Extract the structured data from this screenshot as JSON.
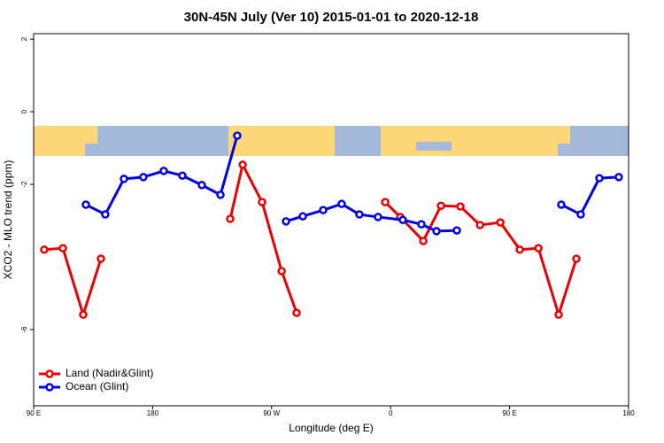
{
  "chart_data": {
    "type": "line",
    "title": "30N-45N July (Ver 10)   2015-01-01 to 2020-12-18",
    "x_label": "Longitude (deg E)",
    "y_label": "XCO2 - MLO trend (ppm)",
    "xlim": [
      90,
      540
    ],
    "xticks": [
      {
        "value": 90,
        "label": "90 E"
      },
      {
        "value": 180,
        "label": "180"
      },
      {
        "value": 270,
        "label": "90 W"
      },
      {
        "value": 360,
        "label": "0"
      },
      {
        "value": 450,
        "label": "90 E"
      },
      {
        "value": 540,
        "label": "180"
      }
    ],
    "ylim": [
      -8.1,
      2.15
    ],
    "yticks": [
      -6,
      -2,
      0,
      2
    ],
    "legend": "bottom-left",
    "series": [
      {
        "name": "Land (Nadir&Glint)",
        "color": "#ee0000",
        "x": [
          98.0,
          112.1,
          127.5,
          140.9,
          null,
          238.7,
          248.1,
          262.8,
          277.6,
          288.9,
          null,
          355.9,
          367.3,
          384.7,
          398.1,
          412.8,
          427.6,
          443.0,
          457.7,
          471.8,
          487.1,
          500.5
        ],
        "values": [
          -3.8,
          -3.76,
          -5.59,
          -4.05,
          null,
          -2.95,
          -1.46,
          -2.49,
          -4.39,
          -5.54,
          null,
          -2.49,
          -2.9,
          -3.56,
          -2.59,
          -2.61,
          -3.12,
          -3.05,
          -3.8,
          -3.76,
          -5.59,
          -4.05
        ]
      },
      {
        "name": "Ocean (Glint)",
        "color": "#0000ee",
        "x": [
          129.5,
          144.2,
          158.3,
          173.0,
          188.4,
          202.5,
          217.2,
          231.3,
          244.0,
          null,
          280.9,
          293.6,
          309.0,
          323.0,
          336.4,
          350.5,
          369.2,
          383.3,
          394.7,
          410.1,
          null,
          489.1,
          503.8,
          517.9,
          532.6
        ],
        "values": [
          -2.56,
          -2.83,
          -1.85,
          -1.8,
          -1.63,
          -1.76,
          -2.02,
          -2.29,
          -0.66,
          null,
          -3.02,
          -2.88,
          -2.71,
          -2.54,
          -2.83,
          -2.9,
          -2.98,
          -3.1,
          -3.29,
          -3.27,
          null,
          -2.56,
          -2.83,
          -1.83,
          -1.8
        ]
      }
    ]
  }
}
